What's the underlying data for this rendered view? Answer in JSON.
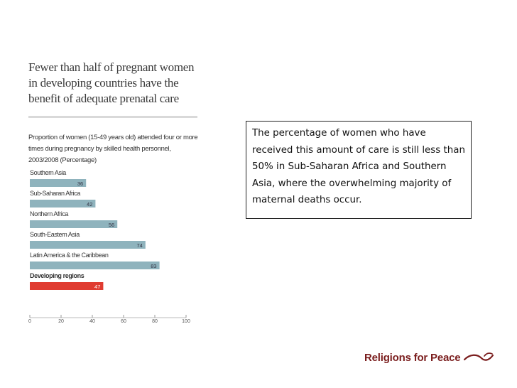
{
  "slide": {
    "callout_text": "The percentage of women who have received this amount of care is still less than 50% in Sub-Saharan Africa and Southern Asia, where the overwhelming majority of maternal deaths occur.",
    "brand_name": "Religions for Peace",
    "brand_logo_icon": "dove-swoosh-icon",
    "brand_color": "#7a1d1d"
  },
  "chart_data": {
    "type": "bar",
    "orientation": "horizontal",
    "title": "Fewer than half of pregnant women in developing countries have the benefit of adequate prenatal care",
    "subtitle": "Proportion of women (15-49 years old) attended four or more times during pregnancy by skilled health personnel, 2003/2008 (Percentage)",
    "categories": [
      "Southern Asia",
      "Sub-Saharan Africa",
      "Northern Africa",
      "South-Eastern Asia",
      "Latin America & the Caribbean",
      "Developing regions"
    ],
    "values": [
      36,
      42,
      56,
      74,
      83,
      47
    ],
    "highlight": "Developing regions",
    "bar_color": "#8fb3bd",
    "highlight_color": "#e03c31",
    "xlim": [
      0,
      100
    ],
    "xticks": [
      0,
      20,
      40,
      60,
      80,
      100
    ],
    "grid": false,
    "legend": "none"
  }
}
